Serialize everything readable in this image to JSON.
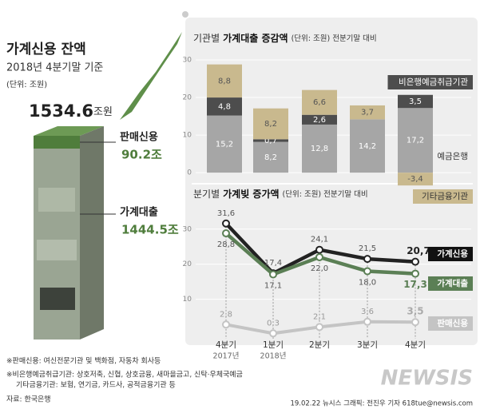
{
  "chart_data": [
    {
      "type": "bar",
      "stacked": true,
      "title_prefix": "기관별",
      "title": "가계대출 증감액",
      "subtitle": "(단위: 조원) 전분기말 대비",
      "categories": [
        null,
        null,
        null,
        null,
        null
      ],
      "series": [
        {
          "name": "예금은행",
          "color": "#a6a6a6",
          "values": [
            15.2,
            8.2,
            12.8,
            14.2,
            17.2
          ],
          "value_labels": [
            "15,2",
            "8,2",
            "12,8",
            "14,2",
            "17,2"
          ]
        },
        {
          "name": "비은행예금취급기관",
          "color": "#4d4d4d",
          "values": [
            4.8,
            0.7,
            2.6,
            null,
            3.5
          ],
          "value_labels": [
            "4,8",
            "0,7",
            "2,6",
            null,
            "3,5"
          ]
        },
        {
          "name": "기타금융기관",
          "color": "#c9b98e",
          "values": [
            8.8,
            8.2,
            6.6,
            3.7,
            -3.4
          ],
          "value_labels": [
            "8,8",
            "8,2",
            "6,6",
            "3,7",
            "-3,4"
          ]
        }
      ],
      "ylim": [
        -4,
        30
      ],
      "yticks": [
        0,
        10,
        20,
        30
      ],
      "grid": true
    },
    {
      "type": "line",
      "title_prefix": "분기별",
      "title": "가계빚 증가액",
      "subtitle": "(단위: 조원) 전분기말 대비",
      "categories": [
        "4분기",
        "1분기",
        "2분기",
        "3분기",
        "4분기"
      ],
      "category_years": [
        "2017년",
        "2018년",
        null,
        null,
        null
      ],
      "series": [
        {
          "name": "가계신용",
          "color": "#222222",
          "values": [
            31.6,
            17.4,
            24.1,
            21.5,
            20.7
          ],
          "value_labels": [
            "31,6",
            "17,4",
            "24,1",
            "21,5",
            "20,7"
          ]
        },
        {
          "name": "가계대출",
          "color": "#5b7f55",
          "values": [
            28.8,
            17.1,
            22.0,
            18.0,
            17.3
          ],
          "value_labels": [
            "28,8",
            "17,1",
            "22,0",
            "18,0",
            "17,3"
          ]
        },
        {
          "name": "판매신용",
          "color": "#c4c4c4",
          "values": [
            2.8,
            0.3,
            2.1,
            3.6,
            3.5
          ],
          "value_labels": [
            "2,8",
            "0,3",
            "2,1",
            "3,6",
            "3,5"
          ]
        }
      ],
      "ylim": [
        -1,
        32
      ],
      "yticks": [
        10,
        20,
        30
      ],
      "grid": true
    }
  ],
  "left_panel": {
    "title": "가계신용 잔액",
    "subtitle": "2018년 4분기말 기준",
    "unit": "(단위: 조원)",
    "total": "1534.6",
    "total_unit": "조원",
    "items": [
      {
        "name": "판매신용",
        "value": "90.2조"
      },
      {
        "name": "가계대출",
        "value": "1444.5조"
      }
    ]
  },
  "notes": [
    "※판매신용: 여신전문기관 및 백화점, 자동차 회사등",
    "※비은행예금취급기관: 상호저축, 신협, 상호금융, 새마을금고, 신탁·우체국예금",
    "기타금융기관: 보험, 연기금, 카드사, 공적금융기관 등",
    "자료: 한국은행"
  ],
  "footer": {
    "credit": "19.02.22 뉴시스 그래픽: 전진우 기자 618tue@newsis.com",
    "logo": "NEWSIS"
  }
}
